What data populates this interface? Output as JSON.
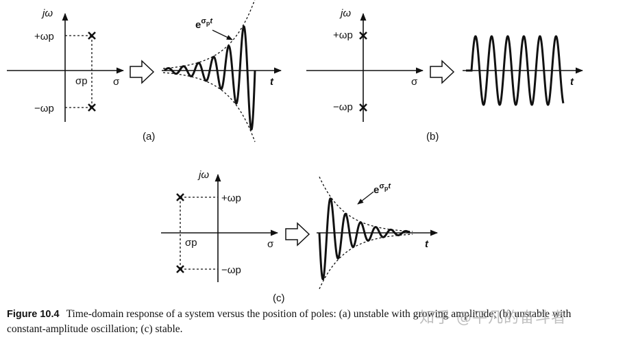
{
  "figure": {
    "panels": [
      {
        "id": "a",
        "label": "(a)",
        "axis_v": "jω",
        "axis_h": "σ",
        "pole_pos": "+ωp",
        "pole_neg": "−ωp",
        "sigma_label": "σp",
        "time_label": "t",
        "envelope_label": "e^(σp t)",
        "response": "growing"
      },
      {
        "id": "b",
        "label": "(b)",
        "axis_v": "jω",
        "axis_h": "σ",
        "pole_pos": "+ωp",
        "pole_neg": "−ωp",
        "time_label": "t",
        "response": "constant"
      },
      {
        "id": "c",
        "label": "(c)",
        "axis_v": "jω",
        "axis_h": "σ",
        "pole_pos": "+ωp",
        "pole_neg": "−ωp",
        "sigma_label": "σp",
        "time_label": "t",
        "envelope_label": "e^(σp t)",
        "response": "decaying"
      }
    ]
  },
  "caption": {
    "number": "Figure 10.4",
    "text": "Time-domain response of a system versus the position of poles: (a) unstable with growing amplitude; (b) unstable with constant-amplitude oscillation; (c) stable."
  },
  "watermark": "知乎 @平凡的奋斗者",
  "colors": {
    "ink": "#111111",
    "background": "#ffffff"
  }
}
